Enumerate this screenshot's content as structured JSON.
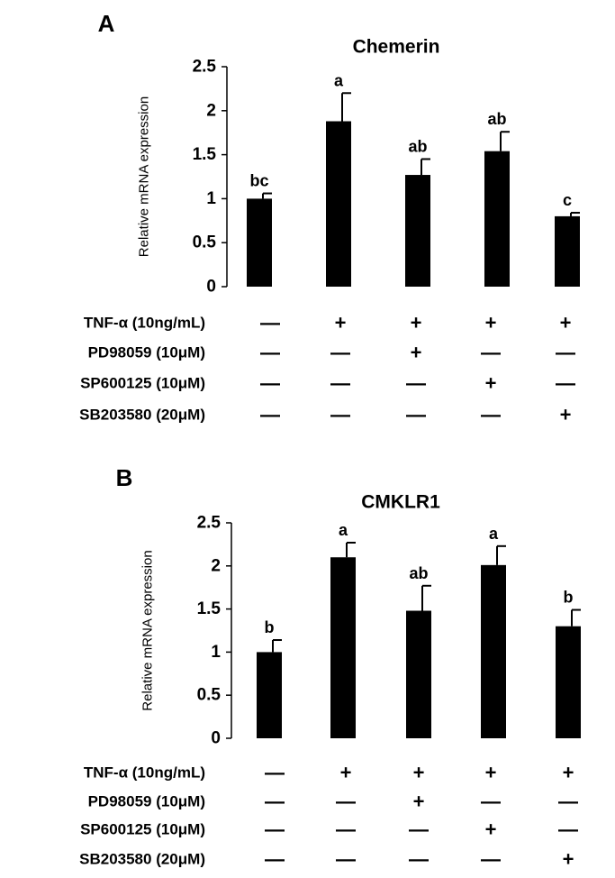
{
  "chart_data": [
    {
      "type": "bar",
      "panel": "A",
      "title": "Chemerin",
      "ylabel": "Relative mRNA expression",
      "xlabel": "",
      "ylim": [
        0,
        2.5
      ],
      "yticks": [
        0,
        0.5,
        1,
        1.5,
        2,
        2.5
      ],
      "ytick_labels": [
        "0",
        "0.5",
        "1",
        "1.5",
        "2",
        "2.5"
      ],
      "values": [
        1.0,
        1.88,
        1.27,
        1.54,
        0.8
      ],
      "errors": [
        0.06,
        0.32,
        0.18,
        0.22,
        0.04
      ],
      "significance": [
        "bc",
        "a",
        "ab",
        "ab",
        "c"
      ],
      "bar_color": "#000000",
      "treatments": [
        {
          "name": "TNF-α (10ng/mL)",
          "signs": [
            "—",
            "+",
            "+",
            "+",
            "+"
          ]
        },
        {
          "name": "PD98059 (10μM)",
          "signs": [
            "—",
            "—",
            "+",
            "—",
            "—"
          ]
        },
        {
          "name": "SP600125 (10μM)",
          "signs": [
            "—",
            "—",
            "—",
            "+",
            "—"
          ]
        },
        {
          "name": "SB203580 (20μM)",
          "signs": [
            "—",
            "—",
            "—",
            "—",
            "+"
          ]
        }
      ]
    },
    {
      "type": "bar",
      "panel": "B",
      "title": "CMKLR1",
      "ylabel": "Relative mRNA expression",
      "xlabel": "",
      "ylim": [
        0,
        2.5
      ],
      "yticks": [
        0,
        0.5,
        1,
        1.5,
        2,
        2.5
      ],
      "ytick_labels": [
        "0",
        "0.5",
        "1",
        "1.5",
        "2",
        "2.5"
      ],
      "values": [
        1.0,
        2.1,
        1.48,
        2.01,
        1.3
      ],
      "errors": [
        0.14,
        0.17,
        0.29,
        0.22,
        0.19
      ],
      "significance": [
        "b",
        "a",
        "ab",
        "a",
        "b"
      ],
      "bar_color": "#000000",
      "treatments": [
        {
          "name": "TNF-α (10ng/mL)",
          "signs": [
            "—",
            "+",
            "+",
            "+",
            "+"
          ]
        },
        {
          "name": "PD98059 (10μM)",
          "signs": [
            "—",
            "—",
            "+",
            "—",
            "—"
          ]
        },
        {
          "name": "SP600125 (10μM)",
          "signs": [
            "—",
            "—",
            "—",
            "+",
            "—"
          ]
        },
        {
          "name": "SB203580 (20μM)",
          "signs": [
            "—",
            "—",
            "—",
            "—",
            "+"
          ]
        }
      ]
    }
  ]
}
